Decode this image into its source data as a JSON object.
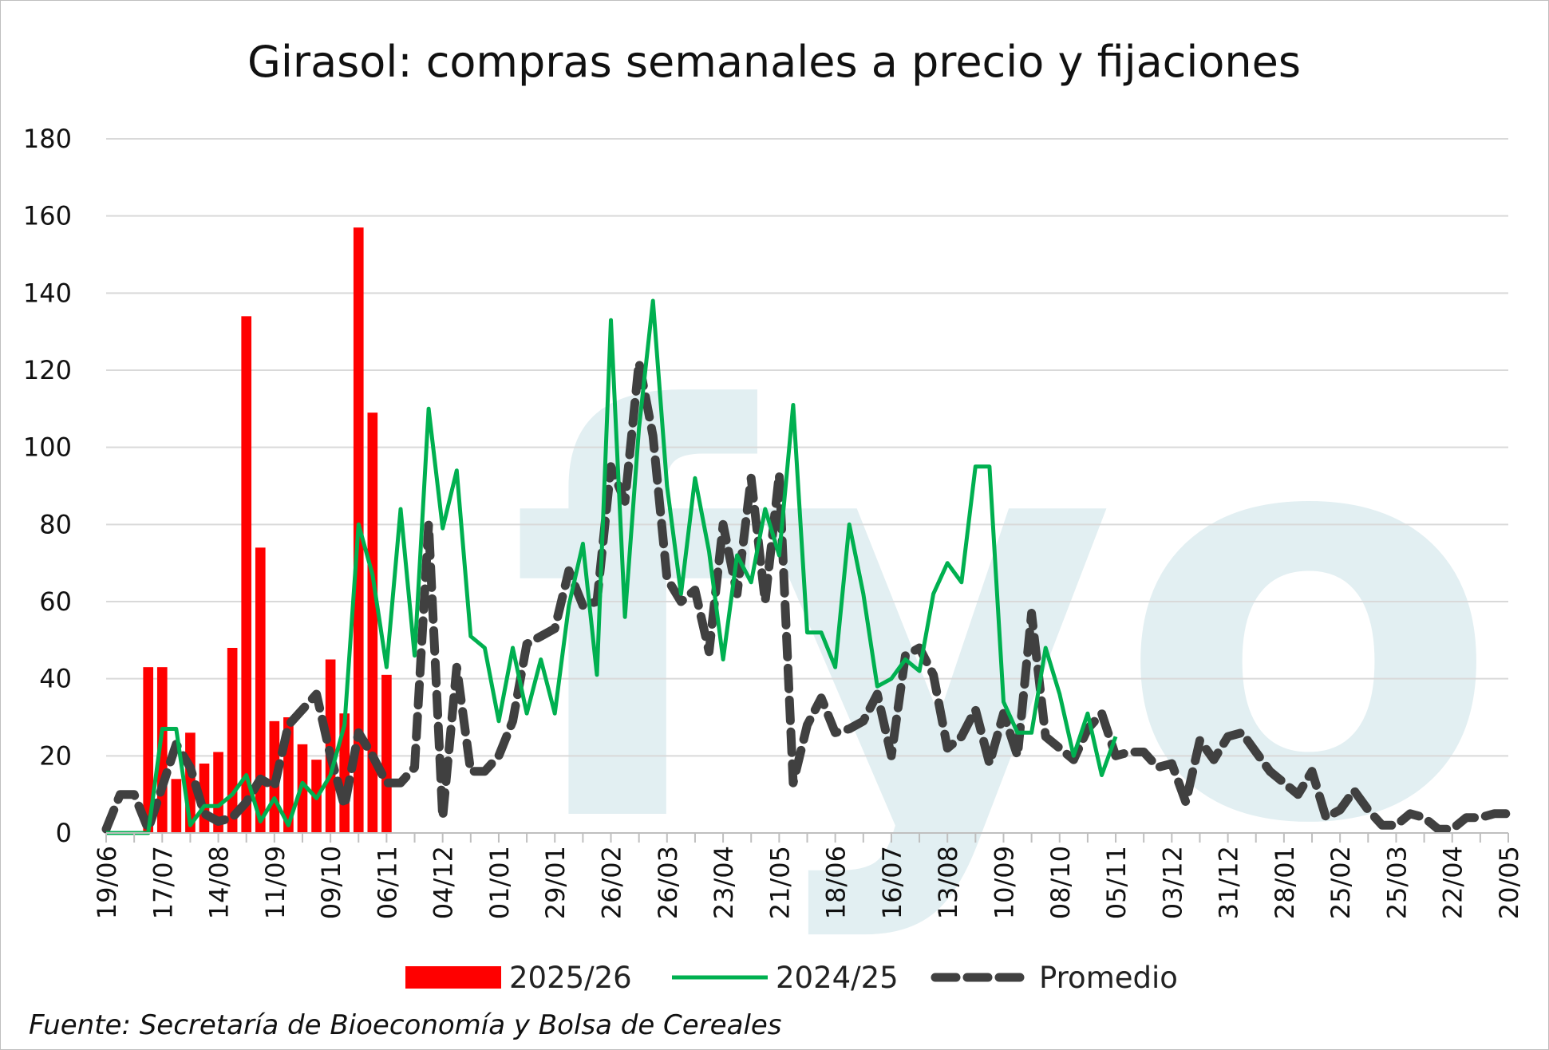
{
  "chart_data": {
    "type": "bar+line",
    "title": "Girasol: compras semanales a precio y fijaciones",
    "source": "Fuente: Secretaría de Bioeconomía y Bolsa de Cereales",
    "watermark": "fyo",
    "ylim": [
      0,
      180
    ],
    "yticks": [
      0,
      20,
      40,
      60,
      80,
      100,
      120,
      140,
      160,
      180
    ],
    "grid": true,
    "legend_position": "bottom",
    "x_tick_labels": [
      "19/06",
      "17/07",
      "14/08",
      "11/09",
      "09/10",
      "06/11",
      "04/12",
      "01/01",
      "29/01",
      "26/02",
      "26/03",
      "23/04",
      "21/05",
      "18/06",
      "16/07",
      "13/08",
      "10/09",
      "08/10",
      "05/11",
      "03/12",
      "31/12",
      "28/01",
      "25/02",
      "25/03",
      "22/04",
      "20/05"
    ],
    "x_tick_weeks": [
      0,
      4,
      8,
      12,
      16,
      20,
      24,
      28,
      32,
      36,
      40,
      44,
      48,
      52,
      56,
      60,
      64,
      68,
      72,
      76,
      80,
      84,
      88,
      92,
      96,
      100
    ],
    "series": [
      {
        "name": "2025/26",
        "kind": "bar",
        "color": "#ff0000",
        "week_start": 3,
        "values": [
          43,
          43,
          14,
          26,
          18,
          21,
          48,
          134,
          74,
          29,
          30,
          23,
          19,
          45,
          31,
          157,
          109,
          41
        ]
      },
      {
        "name": "2024/25",
        "kind": "line",
        "color": "#00b050",
        "week_start": 0,
        "values": [
          0,
          0,
          0,
          0,
          27,
          27,
          2,
          7,
          7,
          10,
          15,
          3,
          9,
          2,
          13,
          9,
          15,
          28,
          80,
          67,
          43,
          84,
          46,
          110,
          79,
          94,
          51,
          48,
          29,
          48,
          31,
          45,
          31,
          59,
          75,
          41,
          133,
          56,
          105,
          138,
          90,
          62,
          92,
          73,
          45,
          72,
          65,
          84,
          72,
          111,
          52,
          52,
          43,
          80,
          62,
          38,
          40,
          45,
          42,
          62,
          70,
          65,
          95,
          95,
          34,
          26,
          26,
          48,
          36,
          20,
          31,
          15,
          25
        ]
      },
      {
        "name": "Promedio",
        "kind": "dashed-line",
        "color": "#404040",
        "week_start": 0,
        "values": [
          1,
          10,
          10,
          1,
          12,
          23,
          17,
          5,
          3,
          4,
          8,
          14,
          12,
          28,
          32,
          36,
          20,
          7,
          26,
          20,
          13,
          13,
          17,
          80,
          4,
          43,
          16,
          16,
          20,
          29,
          49,
          51,
          53,
          68,
          59,
          60,
          95,
          86,
          122,
          103,
          66,
          60,
          63,
          47,
          80,
          62,
          92,
          60,
          93,
          13,
          28,
          35,
          26,
          27,
          29,
          36,
          20,
          46,
          48,
          41,
          22,
          25,
          32,
          18,
          31,
          20,
          57,
          25,
          22,
          19,
          27,
          31,
          20,
          21,
          21,
          17,
          18,
          8,
          24,
          19,
          25,
          26,
          21,
          16,
          13,
          10,
          16,
          4,
          6,
          11,
          6,
          2,
          2,
          5,
          4,
          1,
          1,
          4,
          4,
          5,
          5
        ]
      }
    ]
  }
}
